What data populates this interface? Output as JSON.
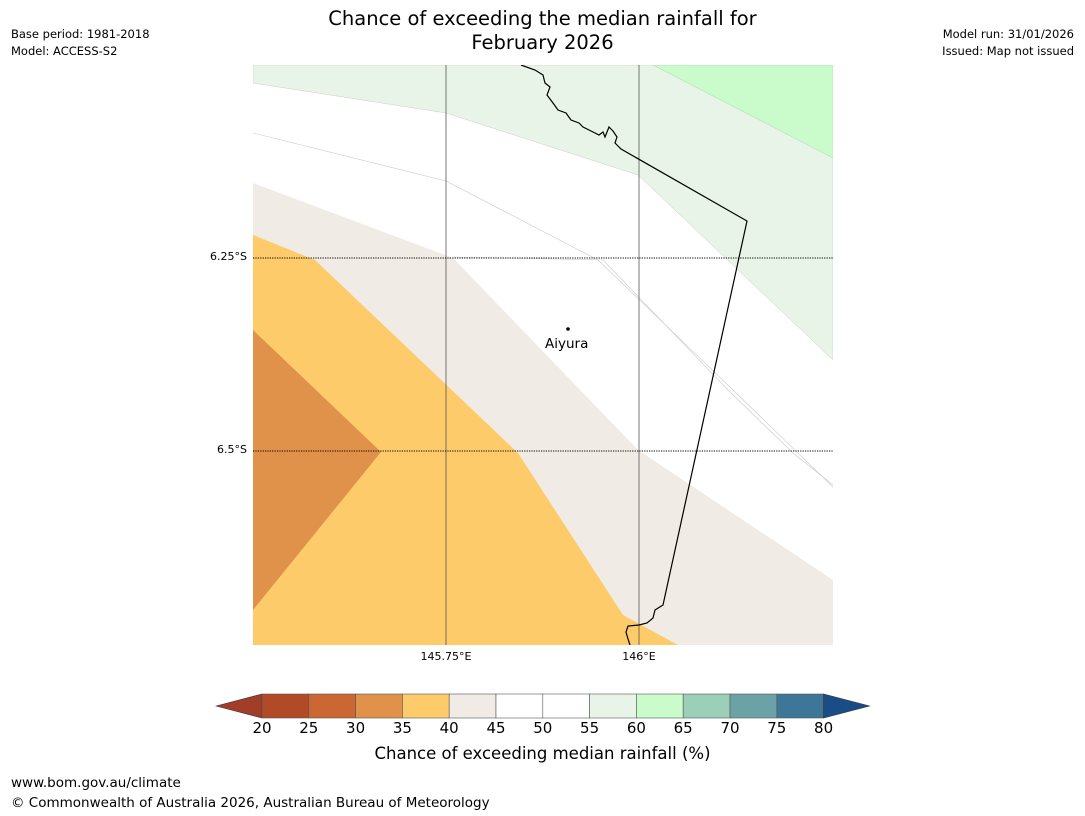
{
  "header": {
    "title_line1": "Chance of exceeding the median rainfall for",
    "title_line2": "February 2026",
    "base_period": "Base period: 1981-2018",
    "model": "Model: ACCESS-S2",
    "model_run": "Model run: 31/01/2026",
    "issued": "Issued: Map not issued"
  },
  "map": {
    "lat_labels": [
      "6.25°S",
      "6.5°S"
    ],
    "lon_labels": [
      "145.75°E",
      "146°E"
    ],
    "place": {
      "name": "Aiyura",
      "marker_icon": "location-dot-icon"
    },
    "colors": {
      "c25_30": "#e0924a",
      "c35_40": "#fdcb6a",
      "c40_45": "#f0ebe5",
      "c45_55": "#ffffff",
      "c55_60": "#e8f4e8",
      "c60_65": "#c9fcca",
      "gridline": "#555555",
      "border": "#000000"
    }
  },
  "colorbar": {
    "title": "Chance of exceeding median rainfall (%)",
    "ticks": [
      "20",
      "25",
      "30",
      "35",
      "40",
      "45",
      "50",
      "55",
      "60",
      "65",
      "70",
      "75",
      "80"
    ],
    "under_color": "#a23e28",
    "over_color": "#1a4d86",
    "segment_colors": [
      "#b24a28",
      "#cc6632",
      "#e0924a",
      "#fdcb6a",
      "#f0ebe5",
      "#ffffff",
      "#ffffff",
      "#e8f4e8",
      "#c9fcca",
      "#9ccfb8",
      "#6aa2a6",
      "#3e7698"
    ]
  },
  "footer": {
    "url": "www.bom.gov.au/climate",
    "copyright": "© Commonwealth of Australia 2026, Australian Bureau of Meteorology"
  }
}
